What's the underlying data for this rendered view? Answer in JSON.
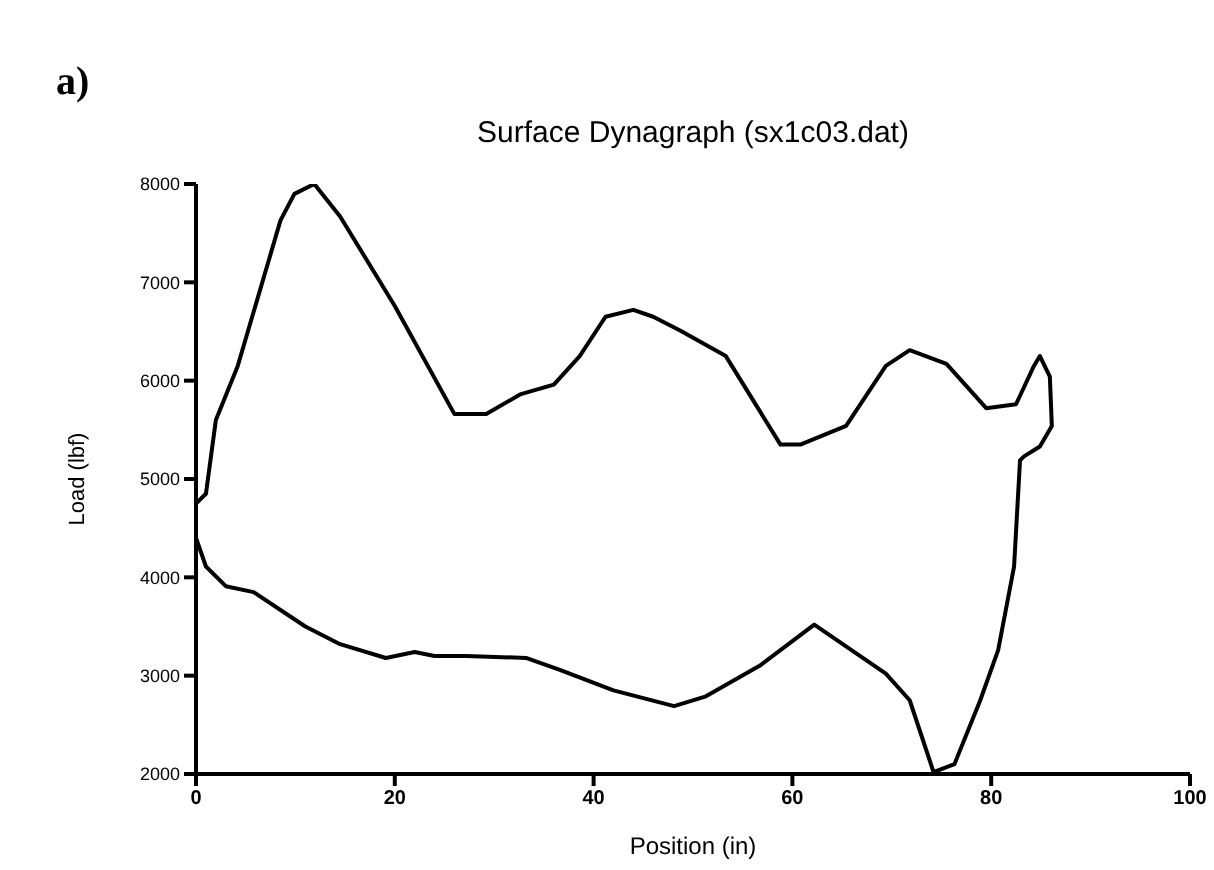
{
  "chart_data": {
    "type": "line",
    "title": "Surface Dynagraph (sx1c03.dat)",
    "xlabel": "Position (in)",
    "ylabel": "Load (lbf)",
    "annotations": [
      "a)"
    ],
    "series": [
      {
        "color": "#000000",
        "x": [
          0,
          1,
          2,
          4.2,
          8.5,
          9.9,
          11.9,
          14.5,
          20,
          26,
          29.2,
          32.6,
          36,
          38.6,
          41.2,
          44,
          46,
          48.7,
          53.3,
          58.8,
          60.8,
          65.4,
          69.4,
          71.8,
          75.5,
          79.5,
          82.5,
          84.3,
          84.9,
          85.9,
          86.1,
          84.9,
          83.3,
          82.9,
          82.3,
          80.7,
          78.9,
          76.3,
          74.2,
          71.8,
          69.4,
          62.2,
          56.7,
          51.3,
          48.1,
          42,
          36.6,
          33.2,
          27.2,
          24,
          22,
          19.1,
          14.5,
          11,
          5.8,
          3,
          1,
          0
        ],
        "values": [
          4750,
          4850,
          5600,
          6150,
          7630,
          7900,
          8000,
          7670,
          6760,
          5660,
          5660,
          5860,
          5960,
          6250,
          6650,
          6720,
          6650,
          6510,
          6250,
          5350,
          5350,
          5540,
          6150,
          6310,
          6170,
          5720,
          5760,
          6150,
          6250,
          6040,
          5540,
          5330,
          5230,
          5190,
          4110,
          3260,
          2750,
          2100,
          2020,
          2750,
          3020,
          3520,
          3100,
          2790,
          2690,
          2850,
          3060,
          3180,
          3200,
          3200,
          3240,
          3180,
          3320,
          3500,
          3850,
          3910,
          4110,
          4400
        ]
      }
    ],
    "xlim": [
      0,
      100
    ],
    "xticks": [
      0,
      20,
      40,
      60,
      80,
      100
    ],
    "ylim": [
      2000,
      8000
    ],
    "yticks": [
      2000,
      3000,
      4000,
      5000,
      6000,
      7000,
      8000
    ],
    "grid": false,
    "marker": "none",
    "line_style": "solid"
  }
}
